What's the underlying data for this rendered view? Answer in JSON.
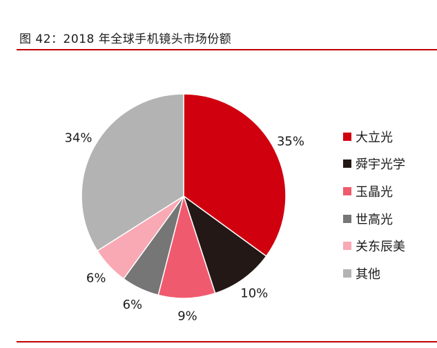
{
  "title": "图 42：2018 年全球手机镜头市场份额",
  "chart_data": {
    "type": "pie",
    "series": [
      {
        "name": "大立光",
        "value": 35,
        "label": "35%",
        "color": "#d0000f"
      },
      {
        "name": "舜宇光学",
        "value": 10,
        "label": "10%",
        "color": "#231815"
      },
      {
        "name": "玉晶光",
        "value": 9,
        "label": "9%",
        "color": "#f05a6e"
      },
      {
        "name": "世高光",
        "value": 6,
        "label": "6%",
        "color": "#767676"
      },
      {
        "name": "关东辰美",
        "value": 6,
        "label": "6%",
        "color": "#f8a9b4"
      },
      {
        "name": "其他",
        "value": 34,
        "label": "34%",
        "color": "#b3b3b3"
      }
    ],
    "legend_position": "right"
  }
}
